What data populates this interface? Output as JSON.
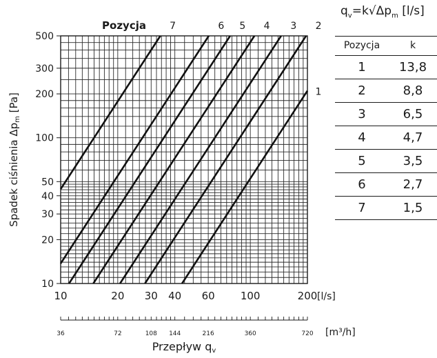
{
  "chart_data": {
    "type": "line",
    "title": "Pozycja",
    "ylabel": "Spadek ciśnienia Δp",
    "ylabel_sub": "m",
    "ylabel_unit": "[Pa]",
    "xlabel": "Przepływ q",
    "xlabel_sub": "v",
    "x_unit": "[l/s]",
    "x2_unit": "[m³/h]",
    "x_scale": "log",
    "y_scale": "log",
    "xlim": [
      10,
      200
    ],
    "ylim": [
      10,
      500
    ],
    "grid": true,
    "x_ticks": [
      "10",
      "20",
      "30",
      "40",
      "60",
      "100",
      "200"
    ],
    "x_tick_values": [
      10,
      20,
      30,
      40,
      60,
      100,
      200
    ],
    "x2_ticks": [
      "36",
      "72",
      "108",
      "144",
      "216",
      "360",
      "720"
    ],
    "x2_tick_values": [
      36,
      72,
      108,
      144,
      216,
      360,
      720
    ],
    "y_ticks": [
      "10",
      "20",
      "30",
      "40",
      "50",
      "100",
      "200",
      "300",
      "500"
    ],
    "y_tick_values": [
      10,
      20,
      30,
      40,
      50,
      100,
      200,
      300,
      500
    ],
    "series": [
      {
        "name": "1",
        "k": 13.8
      },
      {
        "name": "2",
        "k": 8.8
      },
      {
        "name": "3",
        "k": 6.5
      },
      {
        "name": "4",
        "k": 4.7
      },
      {
        "name": "5",
        "k": 3.5
      },
      {
        "name": "6",
        "k": 2.7
      },
      {
        "name": "7",
        "k": 1.5
      }
    ]
  },
  "table": {
    "formula": "q",
    "formula_sub1": "v",
    "formula_mid": "=k√Δp",
    "formula_sub2": "m",
    "formula_unit": " [l/s]",
    "headers": [
      "Pozycja",
      "k"
    ],
    "rows": [
      [
        "1",
        "13,8"
      ],
      [
        "2",
        "8,8"
      ],
      [
        "3",
        "6,5"
      ],
      [
        "4",
        "4,7"
      ],
      [
        "5",
        "3,5"
      ],
      [
        "6",
        "2,7"
      ],
      [
        "7",
        "1,5"
      ]
    ]
  }
}
